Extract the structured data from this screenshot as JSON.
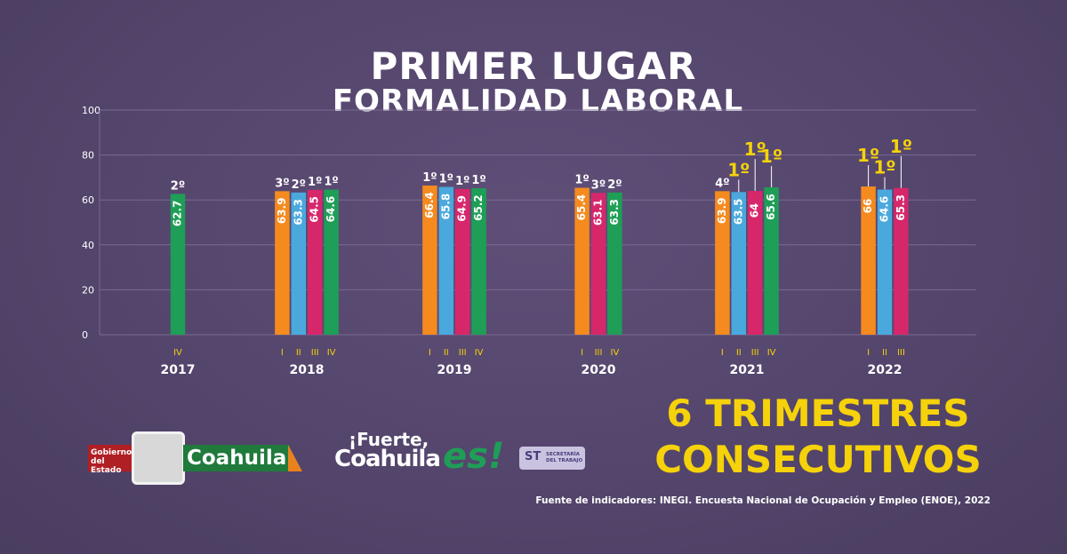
{
  "header": {
    "title_line1": "PRIMER LUGAR",
    "title_line2": "FORMALIDAD LABORAL"
  },
  "slogan": {
    "line1": "6 TRIMESTRES",
    "line2": "CONSECUTIVOS"
  },
  "source": "Fuente de indicadores: INEGI. Encuesta Nacional de Ocupación y Empleo (ENOE), 2022",
  "logos": {
    "gobierno_line1": "Gobierno",
    "gobierno_line2": "del Estado",
    "coahuila": "Coahuila",
    "fuerte_line1": "¡Fuerte,",
    "fuerte_line2": "Coahuila",
    "es": "es!",
    "st_abbr": "ST",
    "st_name": "SECRETARÍA DEL TRABAJO"
  },
  "colors": {
    "I": "#f58a1f",
    "II": "#4aa8dc",
    "III": "#d6276b",
    "IV": "#1e9e56",
    "rank_highlight": "#f5d20a",
    "rank_normal": "#ffffff"
  },
  "chart_data": {
    "type": "bar",
    "ylim": [
      0,
      100
    ],
    "yticks": [
      0,
      20,
      40,
      60,
      80,
      100
    ],
    "grid": true,
    "groups": [
      {
        "year": "2017",
        "bars": [
          {
            "quarter": "IV",
            "value": 62.7,
            "rank": "2º",
            "highlight": false
          }
        ]
      },
      {
        "year": "2018",
        "bars": [
          {
            "quarter": "I",
            "value": 63.9,
            "rank": "3º",
            "highlight": false
          },
          {
            "quarter": "II",
            "value": 63.3,
            "rank": "2º",
            "highlight": false
          },
          {
            "quarter": "III",
            "value": 64.5,
            "rank": "1º",
            "highlight": false
          },
          {
            "quarter": "IV",
            "value": 64.6,
            "rank": "1º",
            "highlight": false
          }
        ]
      },
      {
        "year": "2019",
        "bars": [
          {
            "quarter": "I",
            "value": 66.4,
            "rank": "1º",
            "highlight": false
          },
          {
            "quarter": "II",
            "value": 65.8,
            "rank": "1º",
            "highlight": false
          },
          {
            "quarter": "III",
            "value": 64.9,
            "rank": "1º",
            "highlight": false
          },
          {
            "quarter": "IV",
            "value": 65.2,
            "rank": "1º",
            "highlight": false
          }
        ]
      },
      {
        "year": "2020",
        "bars": [
          {
            "quarter": "I",
            "value": 65.4,
            "rank": "1º",
            "highlight": false
          },
          {
            "quarter": "III",
            "value": 63.1,
            "rank": "3º",
            "highlight": false
          },
          {
            "quarter": "IV",
            "value": 63.3,
            "rank": "2º",
            "highlight": false
          }
        ]
      },
      {
        "year": "2021",
        "bars": [
          {
            "quarter": "I",
            "value": 63.9,
            "rank": "4º",
            "highlight": false
          },
          {
            "quarter": "II",
            "value": 63.5,
            "rank": "1º",
            "highlight": true
          },
          {
            "quarter": "III",
            "value": 64,
            "rank": "1º",
            "highlight": true
          },
          {
            "quarter": "IV",
            "value": 65.6,
            "rank": "1º",
            "highlight": true
          }
        ]
      },
      {
        "year": "2022",
        "bars": [
          {
            "quarter": "I",
            "value": 66,
            "rank": "1º",
            "highlight": true
          },
          {
            "quarter": "II",
            "value": 64.6,
            "rank": "1º",
            "highlight": true
          },
          {
            "quarter": "III",
            "value": 65.3,
            "rank": "1º",
            "highlight": true
          }
        ]
      }
    ]
  }
}
